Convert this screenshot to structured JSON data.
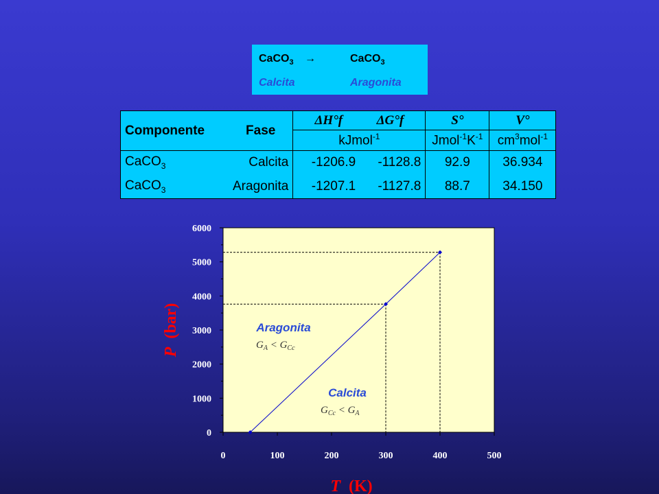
{
  "reaction": {
    "reactant": "CaCO",
    "reactant_sub": "3",
    "arrow": "→",
    "product": "CaCO",
    "product_sub": "3",
    "phase_from": "Calcita",
    "phase_to": "Aragonita"
  },
  "table": {
    "col_component": "Componente",
    "col_phase": "Fase",
    "col_dh": "ΔH°f",
    "col_dg": "ΔG°f",
    "col_s": "S°",
    "col_v": "V°",
    "unit_energy": "kJmol",
    "unit_energy_exp": "-1",
    "unit_s": "Jmol",
    "unit_s_exp1": "-1",
    "unit_s_k": "K",
    "unit_s_exp2": "-1",
    "unit_v": "cm",
    "unit_v_exp1": "3",
    "unit_v_mol": "mol",
    "unit_v_exp2": "-1",
    "rows": [
      {
        "component": "CaCO",
        "component_sub": "3",
        "phase": "Calcita",
        "dh": "-1206.9",
        "dg": "-1128.8",
        "s": "92.9",
        "v": "36.934"
      },
      {
        "component": "CaCO",
        "component_sub": "3",
        "phase": "Aragonita",
        "dh": "-1207.1",
        "dg": "-1127.8",
        "s": "88.7",
        "v": "34.150"
      }
    ]
  },
  "chart_data": {
    "type": "line",
    "x": [
      50,
      300,
      400
    ],
    "y": [
      0,
      3760,
      5280
    ],
    "xlim": [
      0,
      500
    ],
    "ylim": [
      0,
      6000
    ],
    "xticks": [
      "0",
      "100",
      "200",
      "300",
      "400",
      "500"
    ],
    "yticks": [
      "0",
      "1000",
      "2000",
      "3000",
      "4000",
      "5000",
      "6000"
    ],
    "xlabel_var": "T",
    "xlabel_unit": "(K)",
    "ylabel_var": "P",
    "ylabel_unit": "(bar)",
    "grid": false,
    "line_color": "#0000cc",
    "plot_bg": "#ffffcc",
    "annotations": [
      {
        "title": "Aragonita",
        "rel": "G_A < G_Cc"
      },
      {
        "title": "Calcita",
        "rel": "G_Cc < G_A"
      }
    ]
  },
  "colors": {
    "box_bg": "#00ccff",
    "accent_blue": "#2a4bd6",
    "axis_title": "#ff0000"
  }
}
